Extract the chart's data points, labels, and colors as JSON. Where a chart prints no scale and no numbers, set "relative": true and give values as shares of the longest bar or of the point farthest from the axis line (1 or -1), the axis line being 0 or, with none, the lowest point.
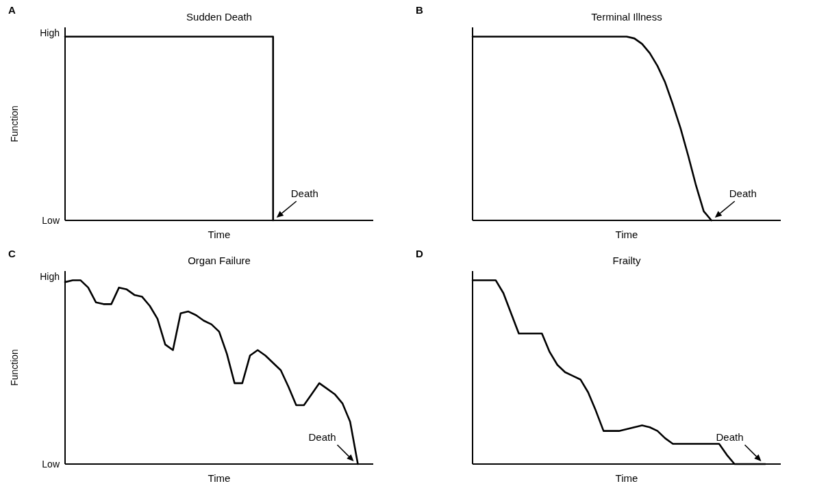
{
  "chart_data": [
    {
      "type": "step",
      "relative": true,
      "title": "Sudden Death",
      "xlabel": "Time",
      "ylabel": "Function",
      "annotations": [
        "A",
        "High",
        "Low",
        "Death"
      ],
      "categories": [
        null,
        null,
        null,
        null,
        null,
        null,
        null,
        null,
        null,
        null,
        null,
        null,
        null,
        null,
        null,
        null,
        null,
        null,
        null,
        null,
        null,
        null,
        null,
        null,
        null,
        null,
        null,
        null,
        null,
        null,
        null,
        null,
        null,
        null,
        null,
        null,
        null,
        null,
        null,
        null,
        null
      ],
      "series": [
        {
          "color": "#000000",
          "values": [
            1,
            1,
            1,
            1,
            1,
            1,
            1,
            1,
            1,
            1,
            1,
            1,
            1,
            1,
            1,
            1,
            1,
            1,
            1,
            1,
            1,
            1,
            1,
            1,
            1,
            1,
            1,
            0,
            null,
            null,
            null,
            null,
            null,
            null,
            null,
            null,
            null,
            null,
            null,
            null,
            null
          ]
        }
      ]
    },
    {
      "type": "line",
      "relative": true,
      "title": "Terminal Illness",
      "xlabel": "Time",
      "annotations": [
        "B",
        "Death"
      ],
      "categories": [
        null,
        null,
        null,
        null,
        null,
        null,
        null,
        null,
        null,
        null,
        null,
        null,
        null,
        null,
        null,
        null,
        null,
        null,
        null,
        null,
        null,
        null,
        null,
        null,
        null,
        null,
        null,
        null,
        null,
        null,
        null,
        null,
        null,
        null,
        null,
        null,
        null,
        null,
        null,
        null,
        null
      ],
      "series": [
        {
          "color": "#000000",
          "values": [
            1,
            1,
            1,
            1,
            1,
            1,
            1,
            1,
            1,
            1,
            1,
            1,
            1,
            1,
            1,
            1,
            1,
            1,
            1,
            1,
            1,
            0.99,
            0.96,
            0.91,
            0.84,
            0.75,
            0.63,
            0.5,
            0.35,
            0.19,
            0.05,
            0,
            null,
            null,
            null,
            null,
            null,
            null,
            null,
            null,
            null
          ]
        }
      ]
    },
    {
      "type": "line",
      "relative": true,
      "title": "Organ Failure",
      "xlabel": "Time",
      "ylabel": "Function",
      "annotations": [
        "C",
        "High",
        "Low",
        "Death"
      ],
      "categories": [
        null,
        null,
        null,
        null,
        null,
        null,
        null,
        null,
        null,
        null,
        null,
        null,
        null,
        null,
        null,
        null,
        null,
        null,
        null,
        null,
        null,
        null,
        null,
        null,
        null,
        null,
        null,
        null,
        null,
        null,
        null,
        null,
        null,
        null,
        null,
        null,
        null,
        null,
        null,
        null,
        null
      ],
      "series": [
        {
          "color": "#000000",
          "values": [
            0.99,
            1,
            1,
            0.96,
            0.88,
            0.87,
            0.87,
            0.96,
            0.95,
            0.92,
            0.91,
            0.86,
            0.79,
            0.65,
            0.62,
            0.82,
            0.83,
            0.81,
            0.78,
            0.76,
            0.72,
            0.6,
            0.44,
            0.44,
            0.59,
            0.62,
            0.59,
            0.55,
            0.51,
            0.42,
            0.32,
            0.32,
            0.38,
            0.44,
            0.41,
            0.38,
            0.33,
            0.23,
            0,
            null,
            null
          ]
        }
      ]
    },
    {
      "type": "line",
      "relative": true,
      "title": "Frailty",
      "xlabel": "Time",
      "annotations": [
        "D",
        "Death"
      ],
      "categories": [
        null,
        null,
        null,
        null,
        null,
        null,
        null,
        null,
        null,
        null,
        null,
        null,
        null,
        null,
        null,
        null,
        null,
        null,
        null,
        null,
        null,
        null,
        null,
        null,
        null,
        null,
        null,
        null,
        null,
        null,
        null,
        null,
        null,
        null,
        null,
        null,
        null,
        null,
        null,
        null,
        null
      ],
      "series": [
        {
          "color": "#000000",
          "values": [
            1,
            1,
            1,
            1,
            0.93,
            0.82,
            0.71,
            0.71,
            0.71,
            0.71,
            0.61,
            0.54,
            0.5,
            0.48,
            0.46,
            0.39,
            0.29,
            0.18,
            0.18,
            0.18,
            0.19,
            0.2,
            0.21,
            0.2,
            0.18,
            0.14,
            0.11,
            0.11,
            0.11,
            0.11,
            0.11,
            0.11,
            0.11,
            0.05,
            0,
            0,
            0,
            0,
            0,
            null,
            null
          ]
        }
      ]
    }
  ]
}
